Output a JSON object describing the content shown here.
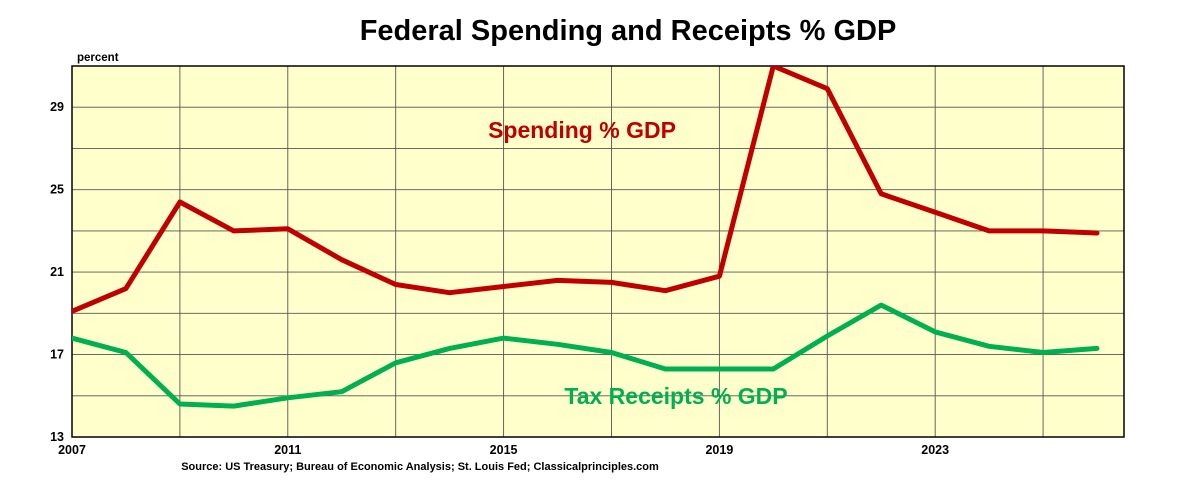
{
  "chart_data": {
    "type": "line",
    "title": "Federal Spending and Receipts % GDP",
    "ylabel": "percent",
    "source": "Source: US Treasury; Bureau of Economic Analysis; St. Louis Fed; Classicalprinciples.com",
    "xlim": [
      2007,
      2026.5
    ],
    "ylim": [
      13,
      31
    ],
    "x_ticks": [
      "2007",
      "2011",
      "2015",
      "2019",
      "2023"
    ],
    "y_ticks": [
      "13",
      "17",
      "21",
      "25",
      "29"
    ],
    "grid": true,
    "plot_background": "#FFFFCC",
    "x": [
      2007,
      2008,
      2009,
      2010,
      2011,
      2012,
      2013,
      2014,
      2015,
      2016,
      2017,
      2018,
      2019,
      2020,
      2021,
      2022,
      2023,
      2024,
      2025,
      2026
    ],
    "series": [
      {
        "name": "Spending % GDP",
        "color": "#C00000",
        "values": [
          19.1,
          20.2,
          24.4,
          23.0,
          23.1,
          21.6,
          20.4,
          20.0,
          20.3,
          20.6,
          20.5,
          20.1,
          20.8,
          31.0,
          29.9,
          24.8,
          23.9,
          23.0,
          23.0,
          22.9
        ]
      },
      {
        "name": "Tax Receipts % GDP",
        "color": "#00B050",
        "values": [
          17.8,
          17.1,
          14.6,
          14.5,
          14.9,
          15.2,
          16.6,
          17.3,
          17.8,
          17.5,
          17.1,
          16.3,
          16.3,
          16.3,
          17.9,
          19.4,
          18.1,
          17.4,
          17.1,
          17.3
        ]
      }
    ]
  }
}
